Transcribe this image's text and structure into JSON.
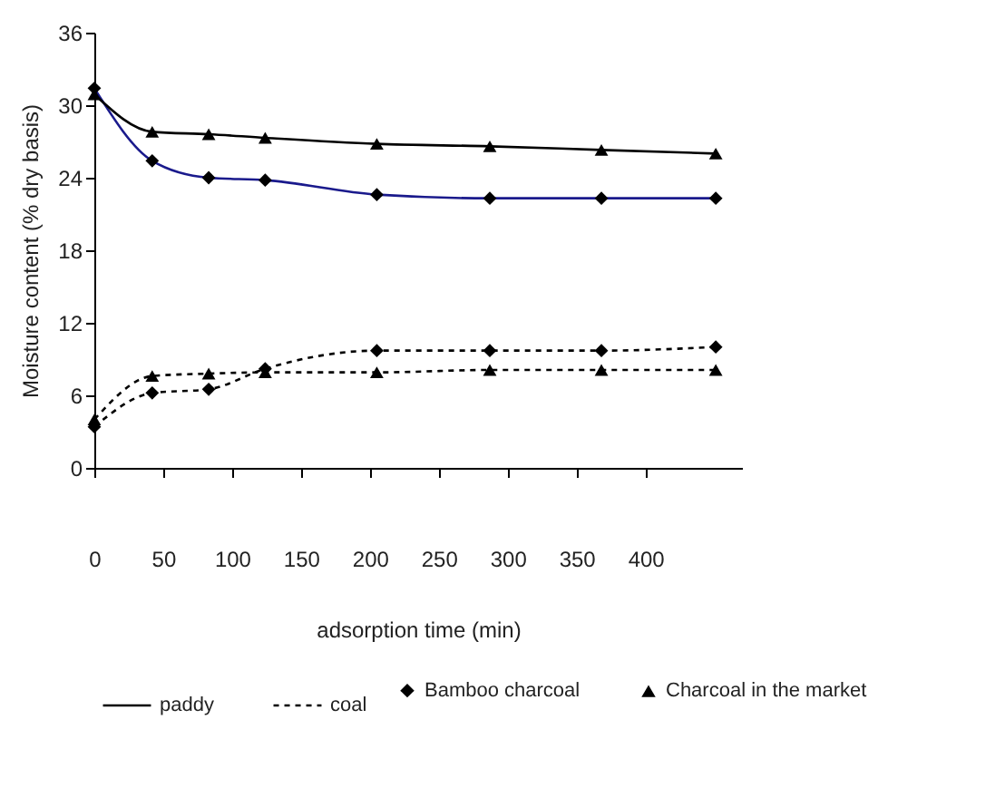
{
  "chart_data": {
    "type": "line",
    "xlabel": "adsorption time (min)",
    "ylabel": "Moisture content (% dry basis)",
    "x": [
      0,
      42,
      83,
      124,
      205,
      287,
      368,
      451
    ],
    "xlim": [
      0,
      470
    ],
    "xticks": [
      0,
      50,
      100,
      150,
      200,
      250,
      300,
      350,
      400
    ],
    "ylim": [
      0,
      36
    ],
    "yticks": [
      0,
      6,
      12,
      18,
      24,
      30,
      36
    ],
    "grid": false,
    "annotations": [
      "paddy",
      "coal",
      "Bamboo charcoal",
      "Charcoal in the market"
    ],
    "series": [
      {
        "color": "#1a1a8c",
        "marker": "diamond",
        "line_style": "solid",
        "values": [
          31.4,
          25.4,
          24.0,
          23.8,
          22.6,
          22.3,
          22.3,
          22.3
        ]
      },
      {
        "color": "#000000",
        "marker": "triangle",
        "line_style": "solid",
        "values": [
          30.9,
          27.8,
          27.6,
          27.3,
          26.8,
          26.6,
          26.3,
          26.0
        ]
      },
      {
        "color": "#000000",
        "marker": "diamond",
        "line_style": "dotted",
        "values": [
          3.4,
          6.2,
          6.5,
          8.2,
          9.7,
          9.7,
          9.7,
          10.0
        ]
      },
      {
        "color": "#000000",
        "marker": "triangle",
        "line_style": "dotted",
        "values": [
          4.0,
          7.6,
          7.8,
          7.9,
          7.9,
          8.1,
          8.1,
          8.1
        ]
      }
    ]
  }
}
